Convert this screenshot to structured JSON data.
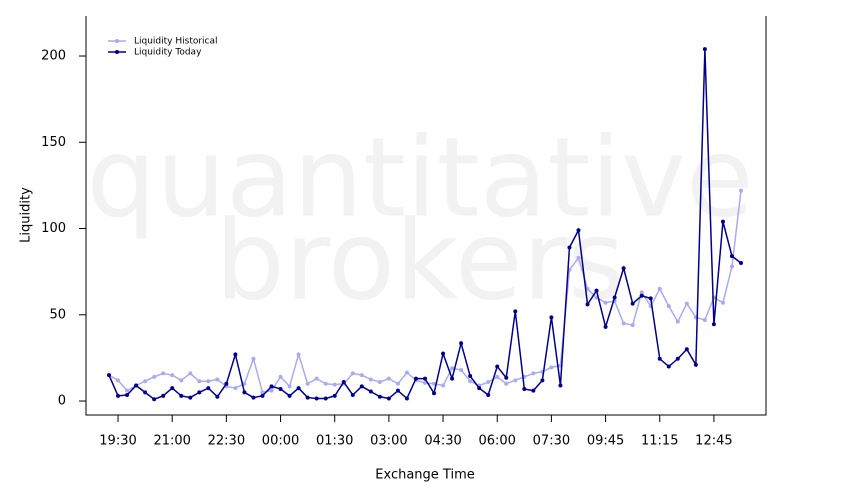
{
  "chart_data": {
    "type": "line",
    "watermark": [
      "quantitative",
      "brokers"
    ],
    "x_label": "Exchange Time",
    "y_label": "Liquidity",
    "categories": [
      null,
      "19:30",
      null,
      null,
      null,
      null,
      null,
      "21:00",
      null,
      null,
      null,
      null,
      null,
      "22:30",
      null,
      null,
      null,
      null,
      null,
      "00:00",
      null,
      null,
      null,
      null,
      null,
      "01:30",
      null,
      null,
      null,
      null,
      null,
      "03:00",
      null,
      null,
      null,
      null,
      null,
      "04:30",
      null,
      null,
      null,
      null,
      null,
      "06:00",
      null,
      null,
      null,
      null,
      null,
      "07:30",
      null,
      null,
      null,
      null,
      null,
      "09:45",
      null,
      null,
      null,
      null,
      null,
      "11:15",
      null,
      null,
      null,
      null,
      null,
      "12:45",
      null,
      null,
      null
    ],
    "series": [
      {
        "name": "Liquidity Historical",
        "color": "#aaaaf0",
        "values": [
          15,
          12,
          6,
          9,
          11.5,
          14,
          16,
          15,
          12,
          16,
          11.5,
          11.5,
          12.5,
          8.5,
          7.5,
          10,
          24.5,
          5,
          6,
          14,
          8.5,
          27,
          10,
          13,
          10,
          9.5,
          10,
          16,
          15,
          12.5,
          11,
          13,
          10,
          16.5,
          12,
          10.5,
          10,
          9,
          19,
          18,
          11.5,
          9,
          11,
          14,
          10,
          12,
          14,
          16,
          17,
          19.5,
          20.5,
          76,
          83,
          65,
          60,
          57,
          58,
          45,
          44,
          63,
          55,
          65,
          55,
          46,
          56.5,
          48.5,
          47,
          60,
          57,
          78,
          122
        ]
      },
      {
        "name": "Liquidity Today",
        "color": "#00008b",
        "values": [
          15,
          3,
          3.5,
          9,
          5,
          1,
          3,
          7.5,
          3,
          2,
          5,
          7.5,
          2.5,
          10,
          27,
          5,
          2,
          3,
          8.5,
          7,
          3,
          7.5,
          2,
          1.5,
          1.5,
          3,
          11,
          3.5,
          8.5,
          5.5,
          2.5,
          1.5,
          6,
          1.5,
          13,
          13,
          4.5,
          27.5,
          13,
          33.5,
          14.5,
          7.5,
          3.5,
          20,
          13.5,
          52,
          7,
          6,
          12,
          48.5,
          9,
          89,
          99,
          56,
          64,
          43,
          60,
          77,
          56.5,
          61,
          59.5,
          24.5,
          20,
          24.5,
          30,
          21,
          204,
          44.5,
          104,
          84,
          80
        ]
      }
    ],
    "ylim": [
      -8.1,
      223.2
    ],
    "yticks": [
      0,
      50,
      100,
      150,
      200
    ],
    "legend": "top-left"
  }
}
